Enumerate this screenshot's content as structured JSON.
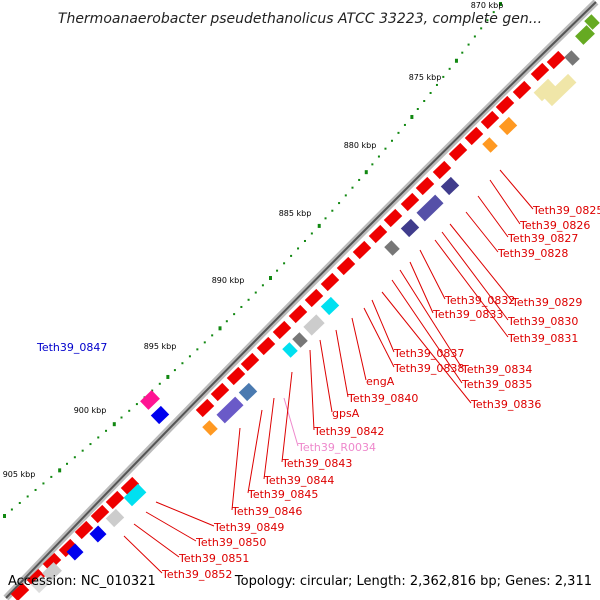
{
  "title": "Thermoanaerobacter pseudethanolicus ATCC 33223, complete gen...",
  "footer": {
    "accession": "Accession: NC_010321",
    "topology": "Topology: circular; Length: 2,362,816 bp; Genes: 2,311"
  },
  "kbp_ticks": [
    "870 kbp",
    "875 kbp",
    "880 kbp",
    "885 kbp",
    "890 kbp",
    "895 kbp",
    "900 kbp",
    "905 kbp"
  ],
  "labels": [
    {
      "text": "Teth39_0825",
      "color": "#dd0000"
    },
    {
      "text": "Teth39_0826",
      "color": "#dd0000"
    },
    {
      "text": "Teth39_0827",
      "color": "#dd0000"
    },
    {
      "text": "Teth39_0828",
      "color": "#dd0000"
    },
    {
      "text": "Teth39_0829",
      "color": "#dd0000"
    },
    {
      "text": "Teth39_0830",
      "color": "#dd0000"
    },
    {
      "text": "Teth39_0831",
      "color": "#dd0000"
    },
    {
      "text": "Teth39_0832",
      "color": "#dd0000"
    },
    {
      "text": "Teth39_0833",
      "color": "#dd0000"
    },
    {
      "text": "Teth39_0834",
      "color": "#dd0000"
    },
    {
      "text": "Teth39_0835",
      "color": "#dd0000"
    },
    {
      "text": "Teth39_0836",
      "color": "#dd0000"
    },
    {
      "text": "Teth39_0837",
      "color": "#dd0000"
    },
    {
      "text": "Teth39_0838",
      "color": "#dd0000"
    },
    {
      "text": "engA",
      "color": "#dd0000"
    },
    {
      "text": "Teth39_0840",
      "color": "#dd0000"
    },
    {
      "text": "gpsA",
      "color": "#dd0000"
    },
    {
      "text": "Teth39_0842",
      "color": "#dd0000"
    },
    {
      "text": "Teth39_R0034",
      "color": "#ee88cc"
    },
    {
      "text": "Teth39_0843",
      "color": "#dd0000"
    },
    {
      "text": "Teth39_0844",
      "color": "#dd0000"
    },
    {
      "text": "Teth39_0845",
      "color": "#dd0000"
    },
    {
      "text": "Teth39_0846",
      "color": "#dd0000"
    },
    {
      "text": "Teth39_0847",
      "color": "#0000cc"
    },
    {
      "text": "Teth39_0849",
      "color": "#dd0000"
    },
    {
      "text": "Teth39_0850",
      "color": "#dd0000"
    },
    {
      "text": "Teth39_0851",
      "color": "#dd0000"
    },
    {
      "text": "Teth39_0852",
      "color": "#dd0000"
    }
  ]
}
